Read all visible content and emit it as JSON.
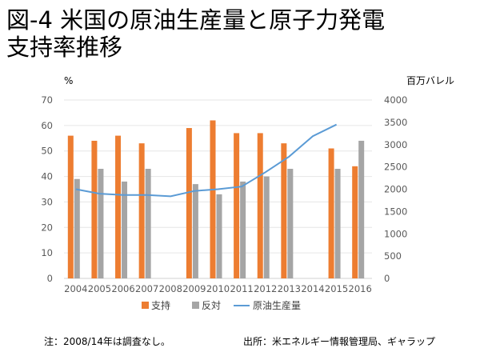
{
  "title_line1": "図-4 米国の原油生産量と原子力発電",
  "title_line2": "支持率推移",
  "note_left": "注：2008/14年は調査なし。",
  "note_right": "出所：米エネルギー情報管理局、ギャラップ",
  "chart_data": {
    "type": "bar",
    "title": "図-4 米国の原油生産量と原子力発電支持率推移",
    "categories": [
      "2004",
      "2005",
      "2006",
      "2007",
      "2008",
      "2009",
      "2010",
      "2011",
      "2012",
      "2013",
      "2014",
      "2015",
      "2016"
    ],
    "series": [
      {
        "name": "支持",
        "type": "bar",
        "axis": "left",
        "color": "#ED7D31",
        "values": [
          56,
          54,
          56,
          53,
          null,
          59,
          62,
          57,
          57,
          53,
          null,
          51,
          44
        ]
      },
      {
        "name": "反対",
        "type": "bar",
        "axis": "left",
        "color": "#A5A5A5",
        "values": [
          39,
          43,
          38,
          43,
          null,
          37,
          33,
          38,
          40,
          43,
          null,
          43,
          54
        ]
      },
      {
        "name": "原油生産量",
        "type": "line",
        "axis": "right",
        "color": "#5B9BD5",
        "values": [
          2000,
          1900,
          1870,
          1870,
          1840,
          1960,
          2000,
          2060,
          2380,
          2730,
          3190,
          3450,
          null
        ]
      }
    ],
    "ylabel": "%",
    "y2label": "百万バレル",
    "ylim": [
      0,
      70
    ],
    "y2lim": [
      0,
      4000
    ],
    "yticks": [
      0,
      10,
      20,
      30,
      40,
      50,
      60,
      70
    ],
    "y2ticks": [
      0,
      500,
      1000,
      1500,
      2000,
      2500,
      3000,
      3500,
      4000
    ],
    "grid": true,
    "legend": "bottom"
  }
}
